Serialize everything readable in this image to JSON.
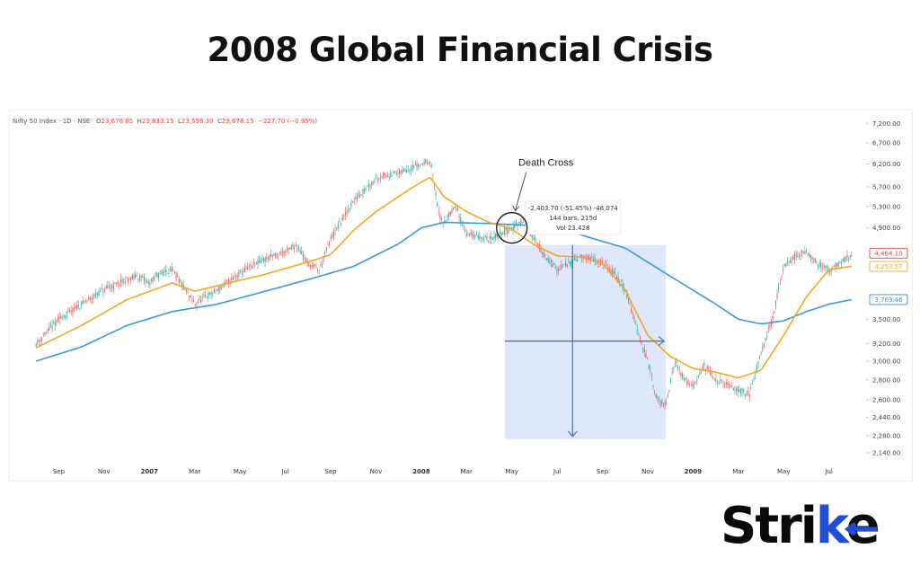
{
  "page": {
    "title": "2008 Global Financial Crisis"
  },
  "legend": {
    "symbol": "Nifty 50 Index · 1D · NSE",
    "open_label": "O",
    "open": "23,676.85",
    "high_label": "H",
    "high": "23,833.15",
    "low_label": "L",
    "low": "23,556.30",
    "close_label": "C",
    "close": "23,678.15",
    "change": "−227.70 (−0.95%)"
  },
  "annotations": {
    "death_cross": "Death Cross",
    "measure_line1": "-2,403.70 (-51.45%) -48,074",
    "measure_line2": "144 bars, 215d",
    "measure_line3": "Vol 23.428"
  },
  "price_badges": [
    {
      "text": "4,464.10",
      "value": 4464.1,
      "color": "#e04848"
    },
    {
      "text": "4,253.57",
      "value": 4253.57,
      "color": "#f5a623"
    },
    {
      "text": "3,763.46",
      "value": 3763.46,
      "color": "#3a8fd9"
    }
  ],
  "brand": {
    "pre": "Stri",
    "accent": "k",
    "post": "e"
  },
  "colors": {
    "up": "#26a69a",
    "down": "#ef5350",
    "sma_fast": "#f5a623",
    "sma_slow": "#3a9ad9",
    "measure_fill": "#dbe4fb",
    "measure_line": "#3b6fd4"
  },
  "chart_data": {
    "type": "line",
    "title": "2008 Global Financial Crisis",
    "y_scale": "log",
    "ylim": [
      2050,
      7450
    ],
    "y_ticks": [
      {
        "value": 7200,
        "label": "7,200.00"
      },
      {
        "value": 6700,
        "label": "6,700.00"
      },
      {
        "value": 6200,
        "label": "6,200.00"
      },
      {
        "value": 5700,
        "label": "5,700.00"
      },
      {
        "value": 5300,
        "label": "5,300.00"
      },
      {
        "value": 4900,
        "label": "4,900.00"
      },
      {
        "value": 3500,
        "label": "3,500.00"
      },
      {
        "value": 3200,
        "label": "3,200.00"
      },
      {
        "value": 3000,
        "label": "3,000.00"
      },
      {
        "value": 2800,
        "label": "2,800.00"
      },
      {
        "value": 2600,
        "label": "2,600.00"
      },
      {
        "value": 2440,
        "label": "2,440.00"
      },
      {
        "value": 2280,
        "label": "2,280.00"
      },
      {
        "value": 2140,
        "label": "2,140.00"
      }
    ],
    "x_ticks": [
      {
        "t": 1,
        "label": "Sep",
        "bold": false
      },
      {
        "t": 3,
        "label": "Nov",
        "bold": false
      },
      {
        "t": 5,
        "label": "2007",
        "bold": true
      },
      {
        "t": 7,
        "label": "Mar",
        "bold": false
      },
      {
        "t": 9,
        "label": "May",
        "bold": false
      },
      {
        "t": 11,
        "label": "Jul",
        "bold": false
      },
      {
        "t": 13,
        "label": "Sep",
        "bold": false
      },
      {
        "t": 15,
        "label": "Nov",
        "bold": false
      },
      {
        "t": 17,
        "label": "2008",
        "bold": true
      },
      {
        "t": 19,
        "label": "Mar",
        "bold": false
      },
      {
        "t": 21,
        "label": "May",
        "bold": false
      },
      {
        "t": 23,
        "label": "Jul",
        "bold": false
      },
      {
        "t": 25,
        "label": "Sep",
        "bold": false
      },
      {
        "t": 27,
        "label": "Nov",
        "bold": false
      },
      {
        "t": 29,
        "label": "2009",
        "bold": true
      },
      {
        "t": 31,
        "label": "Mar",
        "bold": false
      },
      {
        "t": 33,
        "label": "May",
        "bold": false
      },
      {
        "t": 35,
        "label": "Jul",
        "bold": false
      }
    ],
    "xlim": [
      -1,
      36.6
    ],
    "price_path": [
      [
        0,
        3200
      ],
      [
        1,
        3500
      ],
      [
        2,
        3700
      ],
      [
        3,
        3900
      ],
      [
        4,
        4050
      ],
      [
        4.5,
        4100
      ],
      [
        5,
        4000
      ],
      [
        5.5,
        4150
      ],
      [
        6,
        4200
      ],
      [
        7,
        3700
      ],
      [
        7.5,
        3800
      ],
      [
        8,
        3900
      ],
      [
        9,
        4150
      ],
      [
        10,
        4350
      ],
      [
        11,
        4500
      ],
      [
        11.5,
        4600
      ],
      [
        12,
        4300
      ],
      [
        12.5,
        4200
      ],
      [
        13,
        4700
      ],
      [
        14,
        5400
      ],
      [
        15,
        5900
      ],
      [
        16,
        6000
      ],
      [
        16.5,
        6100
      ],
      [
        17,
        6200
      ],
      [
        17.4,
        6300
      ],
      [
        17.8,
        5100
      ],
      [
        18,
        5000
      ],
      [
        18.5,
        5300
      ],
      [
        19,
        4800
      ],
      [
        20,
        4700
      ],
      [
        21,
        4900
      ],
      [
        21.5,
        5000
      ],
      [
        22,
        4700
      ],
      [
        22.5,
        4400
      ],
      [
        23,
        4200
      ],
      [
        24,
        4400
      ],
      [
        24.8,
        4350
      ],
      [
        25,
        4300
      ],
      [
        25.5,
        4150
      ],
      [
        26,
        3900
      ],
      [
        27,
        3000
      ],
      [
        27.4,
        2600
      ],
      [
        27.8,
        2550
      ],
      [
        28.2,
        3000
      ],
      [
        28.6,
        2800
      ],
      [
        29,
        2750
      ],
      [
        29.5,
        2950
      ],
      [
        30,
        2800
      ],
      [
        31,
        2700
      ],
      [
        31.5,
        2650
      ],
      [
        32,
        3100
      ],
      [
        32.5,
        3500
      ],
      [
        33,
        4250
      ],
      [
        33.5,
        4400
      ],
      [
        34,
        4500
      ],
      [
        34.5,
        4300
      ],
      [
        35,
        4200
      ],
      [
        35.5,
        4300
      ],
      [
        36,
        4450
      ]
    ],
    "sma_fast": [
      [
        0,
        3150
      ],
      [
        2,
        3420
      ],
      [
        4,
        3760
      ],
      [
        6,
        4000
      ],
      [
        7,
        3880
      ],
      [
        8,
        3960
      ],
      [
        10,
        4120
      ],
      [
        12,
        4320
      ],
      [
        13,
        4440
      ],
      [
        14,
        4850
      ],
      [
        15,
        5200
      ],
      [
        16,
        5500
      ],
      [
        17,
        5800
      ],
      [
        17.4,
        5900
      ],
      [
        18,
        5500
      ],
      [
        19,
        5200
      ],
      [
        20,
        5000
      ],
      [
        21,
        4880
      ],
      [
        22,
        4600
      ],
      [
        23,
        4420
      ],
      [
        24,
        4400
      ],
      [
        25,
        4300
      ],
      [
        26,
        3900
      ],
      [
        27,
        3300
      ],
      [
        28,
        3050
      ],
      [
        29,
        2920
      ],
      [
        30,
        2880
      ],
      [
        31,
        2820
      ],
      [
        32,
        2900
      ],
      [
        33,
        3300
      ],
      [
        34,
        3800
      ],
      [
        35,
        4200
      ],
      [
        36,
        4253
      ]
    ],
    "sma_slow": [
      [
        0,
        3000
      ],
      [
        2,
        3160
      ],
      [
        4,
        3420
      ],
      [
        6,
        3600
      ],
      [
        8,
        3700
      ],
      [
        10,
        3870
      ],
      [
        12,
        4050
      ],
      [
        14,
        4250
      ],
      [
        16,
        4620
      ],
      [
        17,
        4900
      ],
      [
        18,
        5000
      ],
      [
        20,
        4980
      ],
      [
        22,
        4940
      ],
      [
        24,
        4780
      ],
      [
        26,
        4550
      ],
      [
        28,
        4100
      ],
      [
        30,
        3700
      ],
      [
        31,
        3500
      ],
      [
        32,
        3440
      ],
      [
        33,
        3480
      ],
      [
        34,
        3600
      ],
      [
        35,
        3700
      ],
      [
        36,
        3763
      ]
    ],
    "crossover": {
      "t": 21.0,
      "value": 4900
    },
    "measure_range": {
      "t_start": 20.7,
      "t_end": 27.8,
      "high": 4600,
      "low": 2250
    }
  }
}
